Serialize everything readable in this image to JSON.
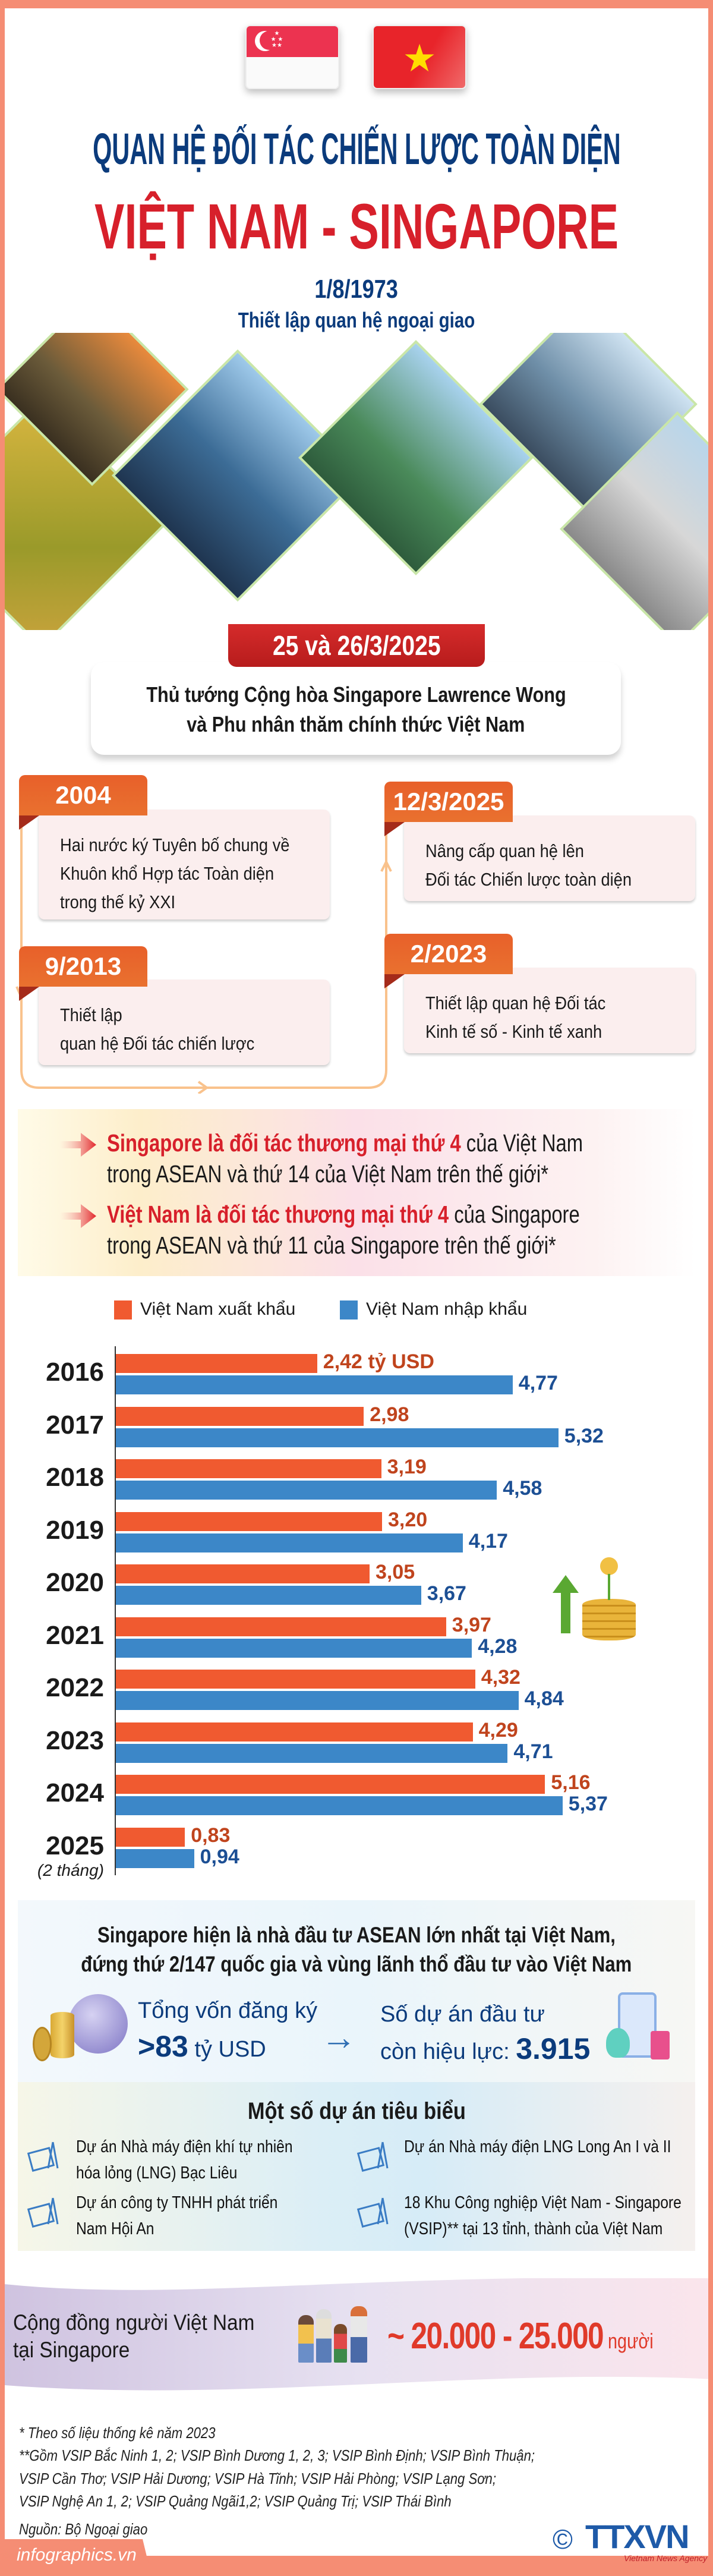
{
  "header": {
    "title_line1": "QUAN HỆ ĐỐI TÁC CHIẾN LƯỢC TOÀN DIỆN",
    "title_line2": "VIỆT NAM - SINGAPORE",
    "date": "1/8/1973",
    "date_caption": "Thiết lập quan hệ ngoại giao"
  },
  "visit": {
    "badge": "25 và 26/3/2025",
    "line1": "Thủ tướng Cộng hòa Singapore Lawrence Wong",
    "line2": "và Phu nhân thăm chính thức Việt Nam"
  },
  "timeline": [
    {
      "date": "2004",
      "lines": [
        "Hai nước ký Tuyên bố chung về",
        "Khuôn khổ Hợp tác Toàn diện",
        "trong thế kỷ XXI"
      ]
    },
    {
      "date": "9/2013",
      "lines": [
        "Thiết lập",
        "quan hệ Đối tác chiến lược"
      ]
    },
    {
      "date": "2/2023",
      "lines": [
        "Thiết lập quan hệ Đối tác",
        "Kinh tế số - Kinh tế xanh"
      ]
    },
    {
      "date": "12/3/2025",
      "lines": [
        "Nâng cấp quan hệ lên",
        "Đối tác Chiến lược toàn diện"
      ]
    }
  ],
  "trade_facts": [
    {
      "highlight": "Singapore là đối tác thương mại thứ 4",
      "rest": " của Việt Nam",
      "line2": "trong ASEAN và thứ 14 của Việt Nam trên thế giới*"
    },
    {
      "highlight": "Việt Nam là đối tác thương mại thứ 4",
      "rest": " của Singapore",
      "line2": "trong ASEAN và thứ 11 của Singapore trên thế giới*"
    }
  ],
  "colors": {
    "export": "#f05a30",
    "import": "#3c87c8",
    "export_label": "#c0441d",
    "import_label": "#1c4f94",
    "navy": "#0b3b7c",
    "red": "#d7202b",
    "frame": "#f58d74"
  },
  "chart_data": {
    "type": "bar",
    "orientation": "horizontal",
    "unit": "tỷ USD",
    "categories": [
      "2016",
      "2017",
      "2018",
      "2019",
      "2020",
      "2021",
      "2022",
      "2023",
      "2024",
      "2025"
    ],
    "category_notes": {
      "2025": "(2 tháng)"
    },
    "series": [
      {
        "name": "Việt Nam xuất khẩu",
        "values": [
          2.42,
          2.98,
          3.19,
          3.2,
          3.05,
          3.97,
          4.32,
          4.29,
          5.16,
          0.83
        ],
        "labels": [
          "2,42 tỷ USD",
          "2,98",
          "3,19",
          "3,20",
          "3,05",
          "3,97",
          "4,32",
          "4,29",
          "5,16",
          "0,83"
        ]
      },
      {
        "name": "Việt Nam nhập khẩu",
        "values": [
          4.77,
          5.32,
          4.58,
          4.17,
          3.67,
          4.28,
          4.84,
          4.71,
          5.37,
          0.94
        ],
        "labels": [
          "4,77",
          "5,32",
          "4,58",
          "4,17",
          "3,67",
          "4,28",
          "4,84",
          "4,71",
          "5,37",
          "0,94"
        ]
      }
    ],
    "legend_position": "top-left",
    "grid": false
  },
  "investment": {
    "line1": "Singapore hiện là nhà đầu tư ASEAN lớn nhất tại Việt Nam,",
    "line2": "đứng thứ 2/147 quốc gia và vùng lãnh thổ đầu tư vào Việt Nam",
    "capital_label": "Tổng vốn đăng ký",
    "capital_value": ">83",
    "capital_unit": " tỷ USD",
    "projects_label": "Số dự án đầu tư",
    "projects_label2": "còn hiệu lực: ",
    "projects_value": "3.915"
  },
  "projects": {
    "title": "Một số dự án tiêu biểu",
    "items": [
      {
        "lines": [
          "Dự án Nhà máy điện khí tự nhiên",
          "hóa lỏng (LNG) Bạc Liêu"
        ]
      },
      {
        "lines": [
          "Dự án Nhà máy điện LNG Long An I và II"
        ]
      },
      {
        "lines": [
          "Dự án công ty TNHH phát triển",
          "Nam Hội An"
        ]
      },
      {
        "lines": [
          "18 Khu Công nghiệp Việt Nam - Singapore",
          "(VSIP)** tại 13 tỉnh, thành của Việt Nam"
        ]
      }
    ]
  },
  "community": {
    "label1": "Cộng đồng người Việt Nam",
    "label2": "tại Singapore",
    "value": "~ 20.000 - 25.000",
    "unit": " người"
  },
  "footnotes": {
    "n1": "* Theo số liệu thống kê năm 2023",
    "n2": "**Gồm VSIP Bắc Ninh 1, 2; VSIP Bình Dương 1, 2, 3; VSIP Bình Định; VSIP Bình Thuận;",
    "n3": "VSIP Cần Thơ; VSIP Hải Dương; VSIP Hà Tĩnh; VSIP Hải Phòng; VSIP Lạng Sơn;",
    "n4": "VSIP Nghệ An 1, 2; VSIP Quảng Ngãi1,2; VSIP Quảng Trị; VSIP Thái Bình",
    "source": "Nguồn: Bộ Ngoại giao"
  },
  "footer": {
    "site": "infographics.vn",
    "logo": "TTXVN",
    "logo_sub": "Vietnam News Agency",
    "copyright": "©"
  }
}
